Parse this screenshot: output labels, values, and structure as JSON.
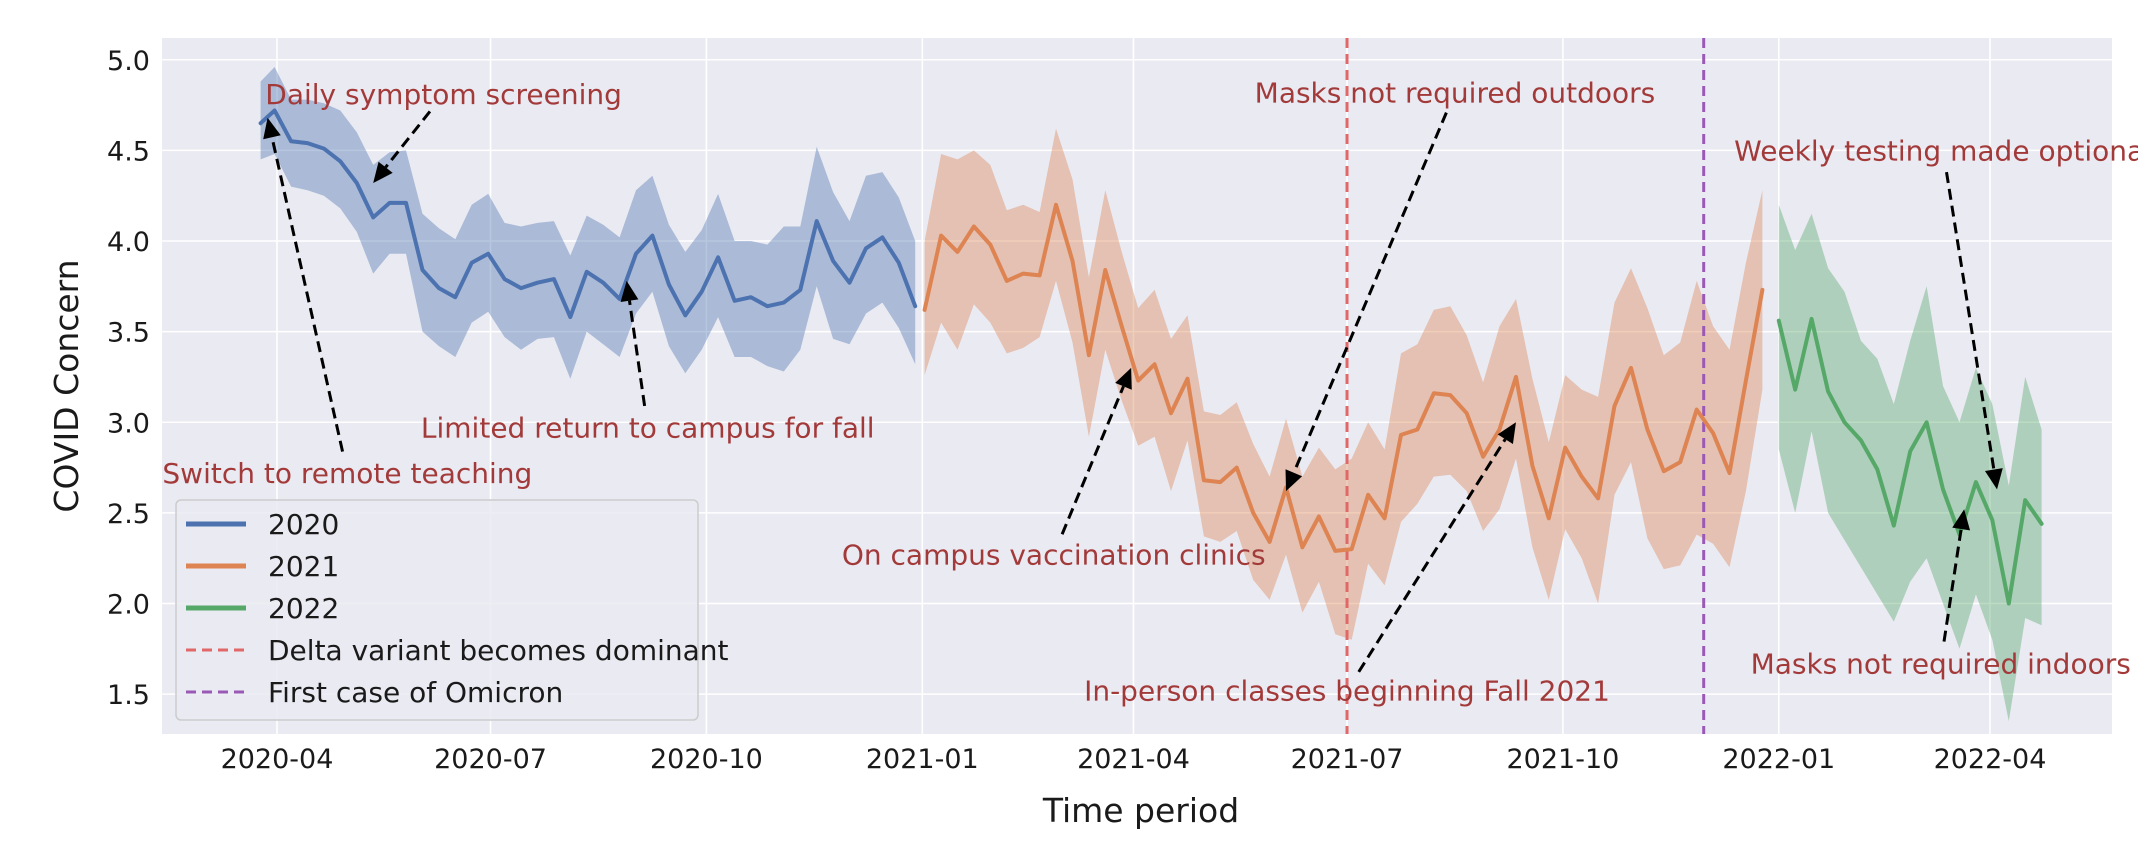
{
  "chart_data": {
    "type": "line",
    "xlabel": "Time period",
    "ylabel": "COVID Concern",
    "xlim": [
      "2020-02-12",
      "2022-05-23"
    ],
    "ylim": [
      1.28,
      5.12
    ],
    "y_ticks": [
      1.5,
      2.0,
      2.5,
      3.0,
      3.5,
      4.0,
      4.5,
      5.0
    ],
    "y_tick_labels": [
      "1.5",
      "2.0",
      "2.5",
      "3.0",
      "3.5",
      "4.0",
      "4.5",
      "5.0"
    ],
    "x_ticks": [
      "2020-04-01",
      "2020-07-01",
      "2020-10-01",
      "2021-01-01",
      "2021-04-01",
      "2021-07-01",
      "2021-10-01",
      "2022-01-01",
      "2022-04-01"
    ],
    "x_tick_labels": [
      "2020-04",
      "2020-07",
      "2020-10",
      "2021-01",
      "2021-04",
      "2021-07",
      "2021-10",
      "2022-01",
      "2022-04"
    ],
    "grid": true,
    "legend_position": "lower-left",
    "colors": {
      "background": "#eaeaf2",
      "grid": "#ffffff",
      "annotation_text": "#a33a3a",
      "arrow": "#000000"
    },
    "series": [
      {
        "name": "2020",
        "color": "#4c72b0",
        "points": [
          [
            "2020-03-25",
            4.65,
            4.45,
            4.88
          ],
          [
            "2020-03-31",
            4.72,
            4.48,
            4.96
          ],
          [
            "2020-04-07",
            4.55,
            4.3,
            4.78
          ],
          [
            "2020-04-14",
            4.54,
            4.28,
            4.78
          ],
          [
            "2020-04-21",
            4.51,
            4.25,
            4.76
          ],
          [
            "2020-04-28",
            4.44,
            4.18,
            4.72
          ],
          [
            "2020-05-05",
            4.32,
            4.05,
            4.6
          ],
          [
            "2020-05-12",
            4.13,
            3.82,
            4.42
          ],
          [
            "2020-05-19",
            4.21,
            3.93,
            4.49
          ],
          [
            "2020-05-26",
            4.21,
            3.93,
            4.5
          ],
          [
            "2020-06-02",
            3.84,
            3.5,
            4.15
          ],
          [
            "2020-06-09",
            3.74,
            3.42,
            4.07
          ],
          [
            "2020-06-16",
            3.69,
            3.36,
            4.01
          ],
          [
            "2020-06-23",
            3.88,
            3.55,
            4.2
          ],
          [
            "2020-06-30",
            3.93,
            3.61,
            4.26
          ],
          [
            "2020-07-07",
            3.79,
            3.47,
            4.1
          ],
          [
            "2020-07-14",
            3.74,
            3.4,
            4.08
          ],
          [
            "2020-07-21",
            3.77,
            3.46,
            4.1
          ],
          [
            "2020-07-28",
            3.79,
            3.47,
            4.11
          ],
          [
            "2020-08-04",
            3.58,
            3.24,
            3.92
          ],
          [
            "2020-08-11",
            3.83,
            3.5,
            4.14
          ],
          [
            "2020-08-18",
            3.77,
            3.43,
            4.09
          ],
          [
            "2020-08-25",
            3.68,
            3.36,
            4.02
          ],
          [
            "2020-09-01",
            3.93,
            3.6,
            4.28
          ],
          [
            "2020-09-08",
            4.03,
            3.72,
            4.36
          ],
          [
            "2020-09-15",
            3.76,
            3.42,
            4.09
          ],
          [
            "2020-09-22",
            3.59,
            3.27,
            3.94
          ],
          [
            "2020-09-29",
            3.72,
            3.4,
            4.06
          ],
          [
            "2020-10-06",
            3.91,
            3.58,
            4.26
          ],
          [
            "2020-10-13",
            3.67,
            3.36,
            4.0
          ],
          [
            "2020-10-20",
            3.69,
            3.36,
            4.0
          ],
          [
            "2020-10-27",
            3.64,
            3.31,
            3.98
          ],
          [
            "2020-11-03",
            3.66,
            3.28,
            4.08
          ],
          [
            "2020-11-10",
            3.73,
            3.4,
            4.08
          ],
          [
            "2020-11-17",
            4.11,
            3.75,
            4.52
          ],
          [
            "2020-11-24",
            3.89,
            3.46,
            4.27
          ],
          [
            "2020-12-01",
            3.77,
            3.43,
            4.11
          ],
          [
            "2020-12-08",
            3.96,
            3.6,
            4.36
          ],
          [
            "2020-12-15",
            4.02,
            3.66,
            4.38
          ],
          [
            "2020-12-22",
            3.88,
            3.52,
            4.24
          ],
          [
            "2020-12-29",
            3.64,
            3.32,
            4.0
          ]
        ]
      },
      {
        "name": "2021",
        "color": "#dd8452",
        "points": [
          [
            "2021-01-02",
            3.62,
            3.26,
            4.0
          ],
          [
            "2021-01-09",
            4.03,
            3.55,
            4.48
          ],
          [
            "2021-01-16",
            3.94,
            3.4,
            4.45
          ],
          [
            "2021-01-23",
            4.08,
            3.65,
            4.5
          ],
          [
            "2021-01-30",
            3.98,
            3.55,
            4.42
          ],
          [
            "2021-02-06",
            3.78,
            3.38,
            4.17
          ],
          [
            "2021-02-13",
            3.82,
            3.41,
            4.2
          ],
          [
            "2021-02-20",
            3.81,
            3.47,
            4.16
          ],
          [
            "2021-02-27",
            4.2,
            3.78,
            4.62
          ],
          [
            "2021-03-06",
            3.89,
            3.44,
            4.34
          ],
          [
            "2021-03-13",
            3.37,
            2.92,
            3.8
          ],
          [
            "2021-03-20",
            3.84,
            3.4,
            4.28
          ],
          [
            "2021-03-27",
            3.53,
            3.12,
            3.94
          ],
          [
            "2021-04-03",
            3.23,
            2.87,
            3.63
          ],
          [
            "2021-04-10",
            3.32,
            2.92,
            3.73
          ],
          [
            "2021-04-17",
            3.05,
            2.62,
            3.46
          ],
          [
            "2021-04-24",
            3.24,
            2.9,
            3.59
          ],
          [
            "2021-05-01",
            2.68,
            2.37,
            3.06
          ],
          [
            "2021-05-08",
            2.67,
            2.34,
            3.04
          ],
          [
            "2021-05-15",
            2.75,
            2.4,
            3.11
          ],
          [
            "2021-05-22",
            2.5,
            2.13,
            2.88
          ],
          [
            "2021-05-29",
            2.34,
            2.02,
            2.7
          ],
          [
            "2021-06-05",
            2.64,
            2.27,
            3.02
          ],
          [
            "2021-06-12",
            2.31,
            1.95,
            2.7
          ],
          [
            "2021-06-19",
            2.48,
            2.12,
            2.86
          ],
          [
            "2021-06-26",
            2.29,
            1.83,
            2.74
          ],
          [
            "2021-07-03",
            2.3,
            1.8,
            2.8
          ],
          [
            "2021-07-10",
            2.6,
            2.22,
            3.0
          ],
          [
            "2021-07-17",
            2.47,
            2.1,
            2.85
          ],
          [
            "2021-07-24",
            2.93,
            2.45,
            3.38
          ],
          [
            "2021-07-31",
            2.96,
            2.55,
            3.43
          ],
          [
            "2021-08-07",
            3.16,
            2.7,
            3.62
          ],
          [
            "2021-08-14",
            3.15,
            2.71,
            3.64
          ],
          [
            "2021-08-21",
            3.05,
            2.62,
            3.48
          ],
          [
            "2021-08-28",
            2.81,
            2.4,
            3.22
          ],
          [
            "2021-09-04",
            2.96,
            2.52,
            3.53
          ],
          [
            "2021-09-11",
            3.25,
            2.8,
            3.68
          ],
          [
            "2021-09-18",
            2.76,
            2.31,
            3.24
          ],
          [
            "2021-09-25",
            2.47,
            2.02,
            2.89
          ],
          [
            "2021-10-02",
            2.86,
            2.41,
            3.26
          ],
          [
            "2021-10-09",
            2.7,
            2.25,
            3.18
          ],
          [
            "2021-10-16",
            2.58,
            2.0,
            3.14
          ],
          [
            "2021-10-23",
            3.09,
            2.6,
            3.66
          ],
          [
            "2021-10-30",
            3.3,
            2.78,
            3.85
          ],
          [
            "2021-11-06",
            2.96,
            2.36,
            3.63
          ],
          [
            "2021-11-13",
            2.73,
            2.19,
            3.37
          ],
          [
            "2021-11-20",
            2.78,
            2.21,
            3.44
          ],
          [
            "2021-11-27",
            3.07,
            2.38,
            3.78
          ],
          [
            "2021-12-04",
            2.94,
            2.33,
            3.53
          ],
          [
            "2021-12-11",
            2.72,
            2.2,
            3.4
          ],
          [
            "2021-12-18",
            3.23,
            2.62,
            3.88
          ],
          [
            "2021-12-25",
            3.73,
            3.18,
            4.28
          ]
        ]
      },
      {
        "name": "2022",
        "color": "#55a868",
        "points": [
          [
            "2022-01-01",
            3.56,
            2.85,
            4.2
          ],
          [
            "2022-01-08",
            3.18,
            2.5,
            3.95
          ],
          [
            "2022-01-15",
            3.57,
            2.95,
            4.15
          ],
          [
            "2022-01-22",
            3.17,
            2.5,
            3.85
          ],
          [
            "2022-01-29",
            3.0,
            2.35,
            3.72
          ],
          [
            "2022-02-05",
            2.9,
            2.2,
            3.45
          ],
          [
            "2022-02-12",
            2.74,
            2.05,
            3.35
          ],
          [
            "2022-02-19",
            2.43,
            1.9,
            3.1
          ],
          [
            "2022-02-26",
            2.84,
            2.12,
            3.45
          ],
          [
            "2022-03-05",
            3.0,
            2.25,
            3.75
          ],
          [
            "2022-03-12",
            2.63,
            2.0,
            3.2
          ],
          [
            "2022-03-19",
            2.38,
            1.75,
            3.0
          ],
          [
            "2022-03-26",
            2.67,
            2.05,
            3.3
          ],
          [
            "2022-04-02",
            2.46,
            1.8,
            3.1
          ],
          [
            "2022-04-09",
            2.0,
            1.35,
            2.65
          ],
          [
            "2022-04-16",
            2.57,
            1.92,
            3.25
          ],
          [
            "2022-04-23",
            2.44,
            1.88,
            2.96
          ]
        ]
      }
    ],
    "reference_lines": [
      {
        "name": "Delta variant becomes dominant",
        "x": "2021-07-01",
        "color": "#e06868"
      },
      {
        "name": "First case of Omicron",
        "x": "2021-11-30",
        "color": "#9b59b6"
      }
    ],
    "annotations": [
      {
        "text": "Daily symptom screening",
        "target": [
          "2020-05-12",
          4.32
        ],
        "text_anchor": [
          "2020-06-11",
          4.81
        ]
      },
      {
        "text": "Switch to remote teaching",
        "target": [
          "2020-03-28",
          4.68
        ],
        "text_anchor": [
          "2020-05-01",
          2.72
        ]
      },
      {
        "text": "Limited return to campus for fall",
        "target": [
          "2020-08-28",
          3.78
        ],
        "text_anchor": [
          "2020-09-06",
          2.97
        ]
      },
      {
        "text": "On campus vaccination clinics",
        "target": [
          "2021-03-31",
          3.3
        ],
        "text_anchor": [
          "2021-02-26",
          2.27
        ]
      },
      {
        "text": "Masks not required outdoors",
        "target": [
          "2021-06-05",
          2.62
        ],
        "text_anchor": [
          "2021-08-16",
          4.82
        ]
      },
      {
        "text": "In-person classes beginning Fall 2021",
        "target": [
          "2021-09-11",
          3.0
        ],
        "text_anchor": [
          "2021-07-01",
          1.52
        ]
      },
      {
        "text": "Weekly testing made optional",
        "target": [
          "2022-04-04",
          2.63
        ],
        "text_anchor": [
          "2022-03-12",
          4.5
        ]
      },
      {
        "text": "Masks not required indoors",
        "target": [
          "2022-03-21",
          2.52
        ],
        "text_anchor": [
          "2022-03-11",
          1.67
        ]
      }
    ]
  },
  "legend": {
    "items": [
      {
        "label": "2020",
        "color": "#4c72b0",
        "style": "solid"
      },
      {
        "label": "2021",
        "color": "#dd8452",
        "style": "solid"
      },
      {
        "label": "2022",
        "color": "#55a868",
        "style": "solid"
      },
      {
        "label": "Delta variant becomes dominant",
        "color": "#e06868",
        "style": "dashed"
      },
      {
        "label": "First case of Omicron",
        "color": "#9b59b6",
        "style": "dashed"
      }
    ]
  }
}
